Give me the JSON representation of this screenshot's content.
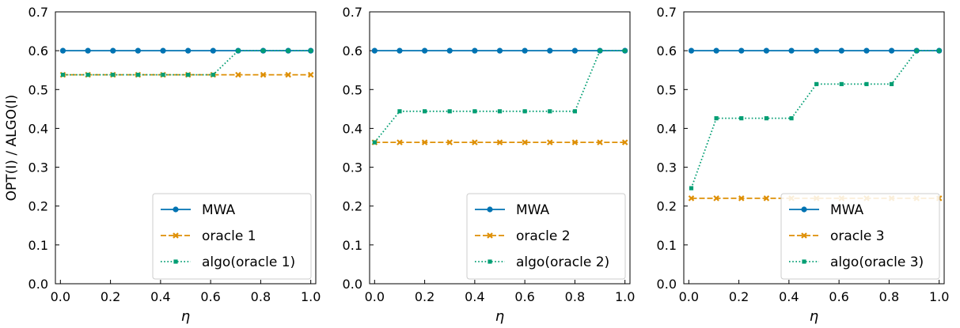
{
  "ylabel": "OPT(I) / ALGO(I)",
  "chart_data": [
    {
      "type": "line",
      "xlabel": "η",
      "ylabel": "OPT(I) / ALGO(I)",
      "xlim": [
        -0.02,
        1.02
      ],
      "ylim": [
        0.0,
        0.7
      ],
      "xticks": [
        "0.0",
        "0.2",
        "0.4",
        "0.6",
        "0.8",
        "1.0"
      ],
      "yticks": [
        "0.0",
        "0.1",
        "0.2",
        "0.3",
        "0.4",
        "0.5",
        "0.6",
        "0.7"
      ],
      "legend_position": "lower-right",
      "x": [
        0.01,
        0.11,
        0.21,
        0.31,
        0.41,
        0.51,
        0.61,
        0.71,
        0.81,
        0.91,
        1.0
      ],
      "series": [
        {
          "name": "MWA",
          "color": "#0173b2",
          "style": "solid",
          "marker": "circle",
          "values": [
            0.6,
            0.6,
            0.6,
            0.6,
            0.6,
            0.6,
            0.6,
            0.6,
            0.6,
            0.6,
            0.6
          ]
        },
        {
          "name": "oracle 1",
          "color": "#de8f05",
          "style": "dashed",
          "marker": "x",
          "values": [
            0.538,
            0.538,
            0.538,
            0.538,
            0.538,
            0.538,
            0.538,
            0.538,
            0.538,
            0.538,
            0.538
          ]
        },
        {
          "name": "algo(oracle 1)",
          "color": "#029e73",
          "style": "dotted",
          "marker": "square",
          "values": [
            0.538,
            0.538,
            0.538,
            0.538,
            0.538,
            0.538,
            0.538,
            0.6,
            0.6,
            0.6,
            0.6
          ]
        }
      ]
    },
    {
      "type": "line",
      "xlabel": "η",
      "xlim": [
        -0.02,
        1.02
      ],
      "ylim": [
        0.0,
        0.7
      ],
      "xticks": [
        "0.0",
        "0.2",
        "0.4",
        "0.6",
        "0.8",
        "1.0"
      ],
      "yticks": [
        "0.0",
        "0.1",
        "0.2",
        "0.3",
        "0.4",
        "0.5",
        "0.6",
        "0.7"
      ],
      "legend_position": "lower-right",
      "x": [
        0.0,
        0.1,
        0.2,
        0.3,
        0.4,
        0.5,
        0.6,
        0.7,
        0.8,
        0.9,
        1.0
      ],
      "series": [
        {
          "name": "MWA",
          "color": "#0173b2",
          "style": "solid",
          "marker": "circle",
          "values": [
            0.6,
            0.6,
            0.6,
            0.6,
            0.6,
            0.6,
            0.6,
            0.6,
            0.6,
            0.6,
            0.6
          ]
        },
        {
          "name": "oracle 2",
          "color": "#de8f05",
          "style": "dashed",
          "marker": "x",
          "values": [
            0.364,
            0.364,
            0.364,
            0.364,
            0.364,
            0.364,
            0.364,
            0.364,
            0.364,
            0.364,
            0.364
          ]
        },
        {
          "name": "algo(oracle 2)",
          "color": "#029e73",
          "style": "dotted",
          "marker": "square",
          "values": [
            0.364,
            0.444,
            0.444,
            0.444,
            0.444,
            0.444,
            0.444,
            0.444,
            0.444,
            0.6,
            0.6
          ]
        }
      ]
    },
    {
      "type": "line",
      "xlabel": "η",
      "xlim": [
        -0.02,
        1.02
      ],
      "ylim": [
        0.0,
        0.7
      ],
      "xticks": [
        "0.0",
        "0.2",
        "0.4",
        "0.6",
        "0.8",
        "1.0"
      ],
      "yticks": [
        "0.0",
        "0.1",
        "0.2",
        "0.3",
        "0.4",
        "0.5",
        "0.6",
        "0.7"
      ],
      "legend_position": "lower-right",
      "x": [
        0.01,
        0.11,
        0.21,
        0.31,
        0.41,
        0.51,
        0.61,
        0.71,
        0.81,
        0.91,
        1.0
      ],
      "series": [
        {
          "name": "MWA",
          "color": "#0173b2",
          "style": "solid",
          "marker": "circle",
          "values": [
            0.6,
            0.6,
            0.6,
            0.6,
            0.6,
            0.6,
            0.6,
            0.6,
            0.6,
            0.6,
            0.6
          ]
        },
        {
          "name": "oracle 3",
          "color": "#de8f05",
          "style": "dashed",
          "marker": "x",
          "values": [
            0.22,
            0.22,
            0.22,
            0.22,
            0.22,
            0.22,
            0.22,
            0.22,
            0.22,
            0.22,
            0.22
          ]
        },
        {
          "name": "algo(oracle 3)",
          "color": "#029e73",
          "style": "dotted",
          "marker": "square",
          "values": [
            0.246,
            0.426,
            0.426,
            0.426,
            0.426,
            0.514,
            0.514,
            0.514,
            0.514,
            0.6,
            0.6
          ]
        }
      ]
    }
  ]
}
